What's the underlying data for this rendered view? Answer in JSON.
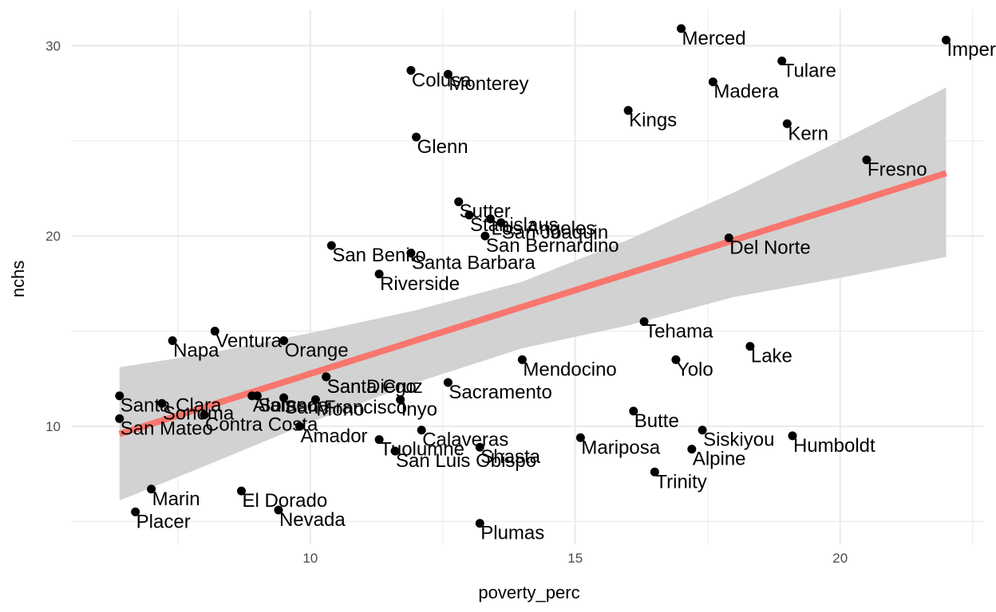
{
  "chart_data": {
    "type": "scatter",
    "xlabel": "poverty_perc",
    "ylabel": "nchs",
    "xlim": [
      5.5,
      22.7
    ],
    "ylim": [
      3.8,
      31.9
    ],
    "x_ticks": [
      10,
      15,
      20
    ],
    "y_ticks": [
      10,
      20,
      30
    ],
    "grid": true,
    "colors": {
      "points": "#000000",
      "fit_line": "#f8766d",
      "ribbon": "#d0d0d0",
      "grid": "#ebebeb"
    },
    "fit": {
      "x": [
        6.4,
        22.0
      ],
      "y": [
        9.6,
        23.3
      ]
    },
    "ribbon": {
      "x": [
        6.4,
        8.0,
        10.0,
        12.0,
        14.0,
        16.0,
        18.0,
        20.0,
        22.0
      ],
      "upper": [
        13.1,
        13.8,
        14.9,
        16.1,
        17.6,
        19.8,
        22.3,
        25.0,
        27.8
      ],
      "lower": [
        6.1,
        7.9,
        10.2,
        12.3,
        14.1,
        15.3,
        16.8,
        17.8,
        18.9
      ]
    },
    "points": [
      {
        "label": "Merced",
        "x": 17.0,
        "y": 30.9
      },
      {
        "label": "Imperial",
        "x": 22.0,
        "y": 30.3
      },
      {
        "label": "Tulare",
        "x": 18.9,
        "y": 29.2
      },
      {
        "label": "Colusa",
        "x": 11.9,
        "y": 28.7
      },
      {
        "label": "Monterey",
        "x": 12.6,
        "y": 28.5
      },
      {
        "label": "Madera",
        "x": 17.6,
        "y": 28.1
      },
      {
        "label": "Kings",
        "x": 16.0,
        "y": 26.6
      },
      {
        "label": "Kern",
        "x": 19.0,
        "y": 25.9
      },
      {
        "label": "Glenn",
        "x": 12.0,
        "y": 25.2
      },
      {
        "label": "Fresno",
        "x": 20.5,
        "y": 24.0
      },
      {
        "label": "Sutter",
        "x": 12.8,
        "y": 21.8
      },
      {
        "label": "Stanislaus",
        "x": 13.0,
        "y": 21.1
      },
      {
        "label": "Los Angeles",
        "x": 13.4,
        "y": 20.9
      },
      {
        "label": "San Joaquin",
        "x": 13.6,
        "y": 20.7
      },
      {
        "label": "San Bernardino",
        "x": 13.3,
        "y": 20.0
      },
      {
        "label": "Del Norte",
        "x": 17.9,
        "y": 19.9
      },
      {
        "label": "San Benito",
        "x": 10.4,
        "y": 19.5
      },
      {
        "label": "Santa Barbara",
        "x": 11.9,
        "y": 19.1
      },
      {
        "label": "Riverside",
        "x": 11.3,
        "y": 18.0
      },
      {
        "label": "Tehama",
        "x": 16.3,
        "y": 15.5
      },
      {
        "label": "Ventura",
        "x": 8.2,
        "y": 15.0
      },
      {
        "label": "Napa",
        "x": 7.4,
        "y": 14.5
      },
      {
        "label": "Orange",
        "x": 9.5,
        "y": 14.5
      },
      {
        "label": "Lake",
        "x": 18.3,
        "y": 14.2
      },
      {
        "label": "Mendocino",
        "x": 14.0,
        "y": 13.5
      },
      {
        "label": "Yolo",
        "x": 16.9,
        "y": 13.5
      },
      {
        "label": "Santa Cruz",
        "x": 10.3,
        "y": 12.6
      },
      {
        "label": "San Diego",
        "x": 10.3,
        "y": 12.6
      },
      {
        "label": "Sacramento",
        "x": 12.6,
        "y": 12.3
      },
      {
        "label": "Santa Clara",
        "x": 6.4,
        "y": 11.6
      },
      {
        "label": "Alameda",
        "x": 8.9,
        "y": 11.6
      },
      {
        "label": "Solano",
        "x": 9.0,
        "y": 11.6
      },
      {
        "label": "San Francisco",
        "x": 9.5,
        "y": 11.5
      },
      {
        "label": "Mono",
        "x": 10.1,
        "y": 11.4
      },
      {
        "label": "Inyo",
        "x": 11.7,
        "y": 11.4
      },
      {
        "label": "Sonoma",
        "x": 7.2,
        "y": 11.2
      },
      {
        "label": "Butte",
        "x": 16.1,
        "y": 10.8
      },
      {
        "label": "San Mateo",
        "x": 6.4,
        "y": 10.4
      },
      {
        "label": "Contra Costa",
        "x": 8.0,
        "y": 10.6
      },
      {
        "label": "Amador",
        "x": 9.8,
        "y": 10.0
      },
      {
        "label": "Calaveras",
        "x": 12.1,
        "y": 9.8
      },
      {
        "label": "Siskiyou",
        "x": 17.4,
        "y": 9.8
      },
      {
        "label": "Humboldt",
        "x": 19.1,
        "y": 9.5
      },
      {
        "label": "Mariposa",
        "x": 15.1,
        "y": 9.4
      },
      {
        "label": "Tuolumne",
        "x": 11.3,
        "y": 9.3
      },
      {
        "label": "Shasta",
        "x": 13.2,
        "y": 8.9
      },
      {
        "label": "Alpine",
        "x": 17.2,
        "y": 8.8
      },
      {
        "label": "San Luis Obispo",
        "x": 11.6,
        "y": 8.7
      },
      {
        "label": "Trinity",
        "x": 16.5,
        "y": 7.6
      },
      {
        "label": "Marin",
        "x": 7.0,
        "y": 6.7
      },
      {
        "label": "El Dorado",
        "x": 8.7,
        "y": 6.6
      },
      {
        "label": "Nevada",
        "x": 9.4,
        "y": 5.6
      },
      {
        "label": "Placer",
        "x": 6.7,
        "y": 5.5
      },
      {
        "label": "Plumas",
        "x": 13.2,
        "y": 4.9
      }
    ]
  }
}
